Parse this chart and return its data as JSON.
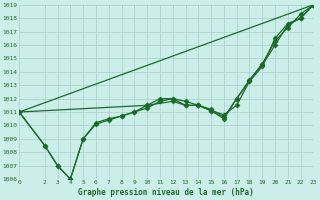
{
  "title": "Graphe pression niveau de la mer (hPa)",
  "background_color": "#cceee8",
  "grid_color": "#aacccc",
  "line_color": "#1a6b2a",
  "marker_color": "#1a6b2a",
  "xmin": 0,
  "xmax": 23,
  "ymin": 1006,
  "ymax": 1019,
  "yticks": [
    1006,
    1007,
    1008,
    1009,
    1010,
    1011,
    1012,
    1013,
    1014,
    1015,
    1016,
    1017,
    1018,
    1019
  ],
  "xticks": [
    0,
    2,
    3,
    4,
    5,
    6,
    7,
    8,
    9,
    10,
    11,
    12,
    13,
    14,
    15,
    16,
    17,
    18,
    19,
    20,
    21,
    22,
    23
  ],
  "series": [
    {
      "x": [
        0,
        23
      ],
      "y": [
        1011,
        1019
      ],
      "marker": null,
      "markersize": 0,
      "linewidth": 0.9
    },
    {
      "x": [
        0,
        2,
        3,
        4,
        5,
        6,
        7,
        8,
        9,
        10,
        11,
        12,
        13,
        14,
        15,
        16,
        17,
        18,
        19,
        20,
        21,
        22,
        23
      ],
      "y": [
        1011,
        1008.5,
        1007,
        1006,
        1009,
        1010.2,
        1010.5,
        1010.7,
        1011.0,
        1011.3,
        1011.8,
        1012.0,
        1011.5,
        1011.5,
        1011.1,
        1010.8,
        1011.5,
        1013.3,
        1014.5,
        1016.0,
        1017.5,
        1018.0,
        1019
      ],
      "marker": "D",
      "markersize": 2.5,
      "linewidth": 0.9
    },
    {
      "x": [
        0,
        2,
        3,
        4,
        5,
        6,
        7,
        8,
        9,
        10,
        11,
        12,
        13,
        14,
        15,
        16,
        17,
        18,
        19,
        20,
        21,
        22,
        23
      ],
      "y": [
        1011,
        1008.5,
        1007,
        1006,
        1009,
        1010.1,
        1010.4,
        1010.7,
        1011.0,
        1011.5,
        1012.0,
        1012.0,
        1011.8,
        1011.5,
        1011.2,
        1010.6,
        1012.0,
        1013.4,
        1014.6,
        1016.3,
        1017.3,
        1018.3,
        1019
      ],
      "marker": "D",
      "markersize": 2.5,
      "linewidth": 0.9
    },
    {
      "x": [
        0,
        10,
        12,
        13,
        14,
        15,
        16,
        17,
        18,
        19,
        20,
        21,
        22,
        23
      ],
      "y": [
        1011,
        1011.5,
        1011.8,
        1011.5,
        1011.5,
        1011.1,
        1010.5,
        1012.0,
        1013.3,
        1014.4,
        1016.5,
        1017.6,
        1018.0,
        1019
      ],
      "marker": "D",
      "markersize": 2.5,
      "linewidth": 0.9
    }
  ]
}
